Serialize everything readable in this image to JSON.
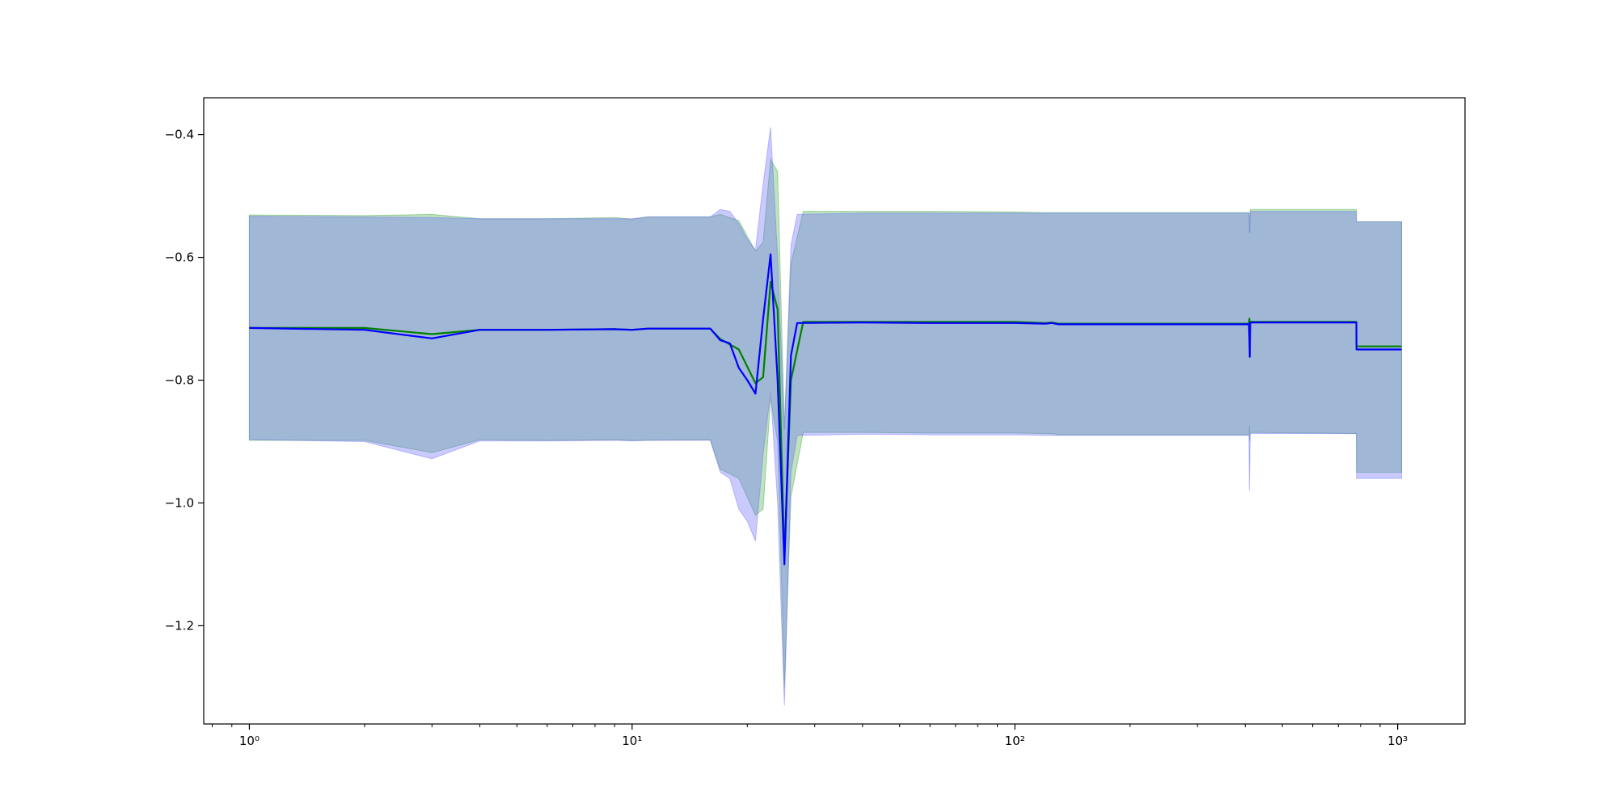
{
  "chart_data": {
    "type": "line",
    "title": "",
    "xlabel": "",
    "ylabel": "",
    "x_scale": "log",
    "xlim": [
      0.76,
      1500
    ],
    "ylim": [
      -1.36,
      -0.34
    ],
    "x_ticks": [
      {
        "value": 1,
        "label": "10⁰"
      },
      {
        "value": 10,
        "label": "10¹"
      },
      {
        "value": 100,
        "label": "10²"
      },
      {
        "value": 1000,
        "label": "10³"
      }
    ],
    "y_ticks": [
      {
        "value": -0.4,
        "label": "−0.4"
      },
      {
        "value": -0.6,
        "label": "−0.6"
      },
      {
        "value": -0.8,
        "label": "−0.8"
      },
      {
        "value": -1.0,
        "label": "−1.0"
      },
      {
        "value": -1.2,
        "label": "−1.2"
      }
    ],
    "grid": false,
    "legend": "none",
    "series": [
      {
        "color": "#008000",
        "band_color": "#2ca02c",
        "points": [
          {
            "x": 1,
            "y": -0.715,
            "lo": -0.898,
            "hi": -0.531
          },
          {
            "x": 2,
            "y": -0.715,
            "lo": -0.898,
            "hi": -0.532
          },
          {
            "x": 3,
            "y": -0.725,
            "lo": -0.918,
            "hi": -0.53
          },
          {
            "x": 4,
            "y": -0.718,
            "lo": -0.897,
            "hi": -0.537
          },
          {
            "x": 6,
            "y": -0.718,
            "lo": -0.898,
            "hi": -0.537
          },
          {
            "x": 9,
            "y": -0.717,
            "lo": -0.897,
            "hi": -0.535
          },
          {
            "x": 10,
            "y": -0.718,
            "lo": -0.898,
            "hi": -0.538
          },
          {
            "x": 11,
            "y": -0.716,
            "lo": -0.898,
            "hi": -0.534
          },
          {
            "x": 16,
            "y": -0.716,
            "lo": -0.897,
            "hi": -0.534
          },
          {
            "x": 17,
            "y": -0.733,
            "lo": -0.945,
            "hi": -0.53
          },
          {
            "x": 19,
            "y": -0.75,
            "lo": -0.96,
            "hi": -0.54
          },
          {
            "x": 21,
            "y": -0.805,
            "lo": -1.02,
            "hi": -0.59
          },
          {
            "x": 22,
            "y": -0.795,
            "lo": -1.01,
            "hi": -0.575
          },
          {
            "x": 23,
            "y": -0.64,
            "lo": -0.83,
            "hi": -0.44
          },
          {
            "x": 24,
            "y": -0.685,
            "lo": -0.9,
            "hi": -0.46
          },
          {
            "x": 25,
            "y": -1.09,
            "lo": -1.3,
            "hi": -0.88
          },
          {
            "x": 26,
            "y": -0.8,
            "lo": -0.99,
            "hi": -0.61
          },
          {
            "x": 28,
            "y": -0.705,
            "lo": -0.885,
            "hi": -0.525
          },
          {
            "x": 40,
            "y": -0.705,
            "lo": -0.885,
            "hi": -0.525
          },
          {
            "x": 60,
            "y": -0.705,
            "lo": -0.886,
            "hi": -0.525
          },
          {
            "x": 100,
            "y": -0.705,
            "lo": -0.886,
            "hi": -0.526
          },
          {
            "x": 120,
            "y": -0.707,
            "lo": -0.887,
            "hi": -0.527
          },
          {
            "x": 125,
            "y": -0.706,
            "lo": -0.887,
            "hi": -0.527
          },
          {
            "x": 130,
            "y": -0.708,
            "lo": -0.889,
            "hi": -0.527
          },
          {
            "x": 409,
            "y": -0.708,
            "lo": -0.889,
            "hi": -0.527
          },
          {
            "x": 410,
            "y": -0.7,
            "lo": -0.875,
            "hi": -0.53
          },
          {
            "x": 411,
            "y": -0.745,
            "lo": -0.9,
            "hi": -0.56
          },
          {
            "x": 412,
            "y": -0.705,
            "lo": -0.885,
            "hi": -0.522
          },
          {
            "x": 780,
            "y": -0.705,
            "lo": -0.887,
            "hi": -0.522
          },
          {
            "x": 781,
            "y": -0.745,
            "lo": -0.95,
            "hi": -0.542
          },
          {
            "x": 1024,
            "y": -0.745,
            "lo": -0.95,
            "hi": -0.542
          }
        ]
      },
      {
        "color": "#0000ff",
        "band_color": "#6666ff",
        "points": [
          {
            "x": 1,
            "y": -0.715,
            "lo": -0.897,
            "hi": -0.533
          },
          {
            "x": 2,
            "y": -0.718,
            "lo": -0.9,
            "hi": -0.534
          },
          {
            "x": 3,
            "y": -0.732,
            "lo": -0.928,
            "hi": -0.535
          },
          {
            "x": 4,
            "y": -0.718,
            "lo": -0.899,
            "hi": -0.537
          },
          {
            "x": 6,
            "y": -0.718,
            "lo": -0.899,
            "hi": -0.537
          },
          {
            "x": 9,
            "y": -0.717,
            "lo": -0.898,
            "hi": -0.537
          },
          {
            "x": 10,
            "y": -0.718,
            "lo": -0.899,
            "hi": -0.537
          },
          {
            "x": 11,
            "y": -0.716,
            "lo": -0.898,
            "hi": -0.534
          },
          {
            "x": 16,
            "y": -0.716,
            "lo": -0.898,
            "hi": -0.534
          },
          {
            "x": 17,
            "y": -0.735,
            "lo": -0.95,
            "hi": -0.522
          },
          {
            "x": 18,
            "y": -0.74,
            "lo": -0.96,
            "hi": -0.525
          },
          {
            "x": 19,
            "y": -0.78,
            "lo": -1.01,
            "hi": -0.545
          },
          {
            "x": 20,
            "y": -0.8,
            "lo": -1.03,
            "hi": -0.57
          },
          {
            "x": 21,
            "y": -0.822,
            "lo": -1.062,
            "hi": -0.588
          },
          {
            "x": 22,
            "y": -0.7,
            "lo": -0.92,
            "hi": -0.48
          },
          {
            "x": 23,
            "y": -0.595,
            "lo": -0.82,
            "hi": -0.388
          },
          {
            "x": 24,
            "y": -0.8,
            "lo": -1.0,
            "hi": -0.6
          },
          {
            "x": 25,
            "y": -1.1,
            "lo": -1.33,
            "hi": -0.88
          },
          {
            "x": 26,
            "y": -0.76,
            "lo": -0.95,
            "hi": -0.58
          },
          {
            "x": 27,
            "y": -0.707,
            "lo": -0.89,
            "hi": -0.53
          },
          {
            "x": 40,
            "y": -0.706,
            "lo": -0.888,
            "hi": -0.528
          },
          {
            "x": 60,
            "y": -0.707,
            "lo": -0.889,
            "hi": -0.528
          },
          {
            "x": 100,
            "y": -0.707,
            "lo": -0.889,
            "hi": -0.528
          },
          {
            "x": 120,
            "y": -0.708,
            "lo": -0.89,
            "hi": -0.528
          },
          {
            "x": 125,
            "y": -0.707,
            "lo": -0.89,
            "hi": -0.528
          },
          {
            "x": 130,
            "y": -0.709,
            "lo": -0.89,
            "hi": -0.528
          },
          {
            "x": 409,
            "y": -0.709,
            "lo": -0.89,
            "hi": -0.528
          },
          {
            "x": 410,
            "y": -0.73,
            "lo": -0.98,
            "hi": -0.56
          },
          {
            "x": 411,
            "y": -0.762,
            "lo": -0.94,
            "hi": -0.545
          },
          {
            "x": 412,
            "y": -0.706,
            "lo": -0.887,
            "hi": -0.525
          },
          {
            "x": 780,
            "y": -0.706,
            "lo": -0.887,
            "hi": -0.525
          },
          {
            "x": 781,
            "y": -0.75,
            "lo": -0.96,
            "hi": -0.542
          },
          {
            "x": 1024,
            "y": -0.75,
            "lo": -0.96,
            "hi": -0.542
          }
        ]
      }
    ]
  }
}
